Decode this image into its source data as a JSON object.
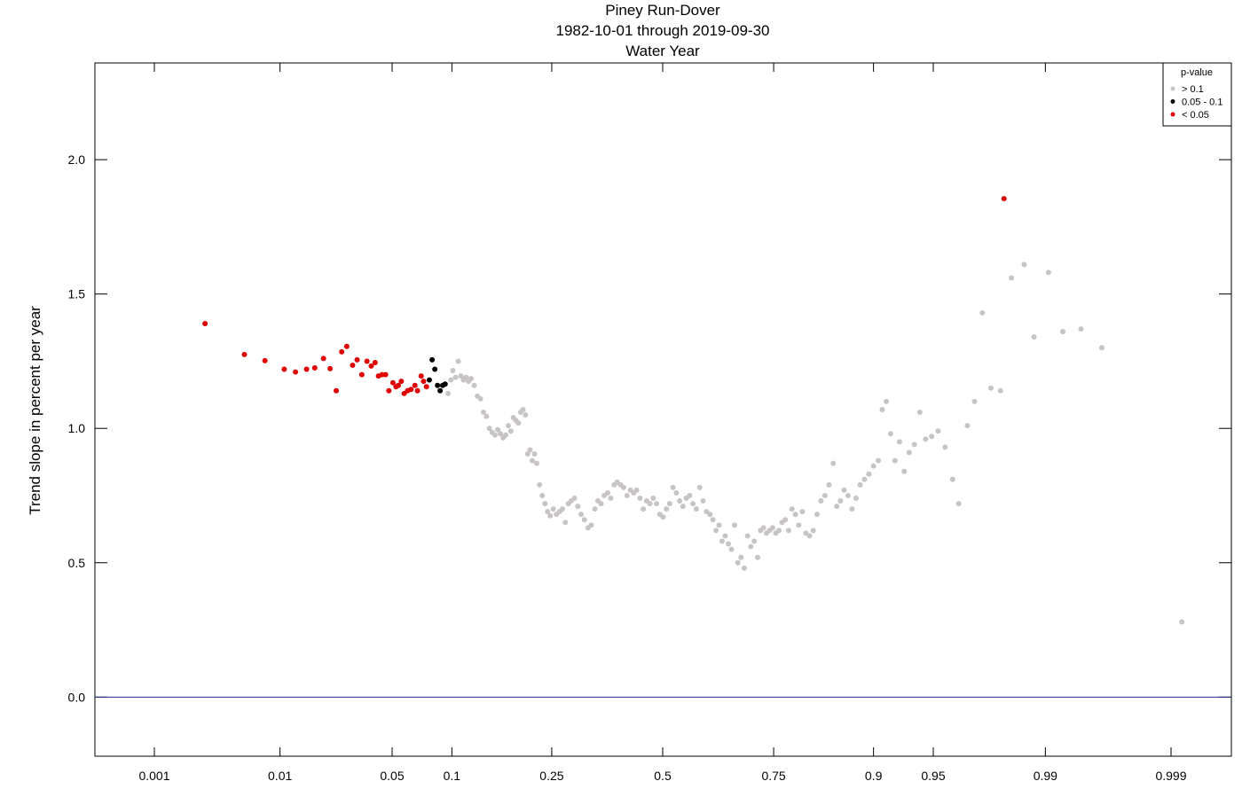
{
  "chart_data": {
    "type": "scatter",
    "title": [
      "Piney Run-Dover",
      "1982-10-01 through 2019-09-30",
      "Water Year"
    ],
    "ylabel": "Trend slope in percent per year",
    "xlabel": "",
    "x_scale": "normal-probability",
    "x_ticks": [
      0.001,
      0.01,
      0.05,
      0.1,
      0.25,
      0.5,
      0.75,
      0.9,
      0.95,
      0.99,
      0.999
    ],
    "x_tick_labels": [
      "0.001",
      "0.01",
      "0.05",
      "0.1",
      "0.25",
      "0.5",
      "0.75",
      "0.9",
      "0.95",
      "0.99",
      "0.999"
    ],
    "ylim": [
      -0.22,
      2.36
    ],
    "y_ticks": [
      0.0,
      0.5,
      1.0,
      1.5,
      2.0
    ],
    "y_tick_labels": [
      "0.0",
      "0.5",
      "1.0",
      "1.5",
      "2.0"
    ],
    "reference_line": {
      "y": 0.0,
      "color": "#1c2e8f"
    },
    "grid": false,
    "legend": {
      "title": "p-value",
      "position": "top-right",
      "entries": [
        {
          "label": "> 0.1",
          "color": "#c8c4c4"
        },
        {
          "label": "0.05 - 0.1",
          "color": "#000000"
        },
        {
          "label": "< 0.05",
          "color": "#e00000"
        }
      ]
    },
    "series": [
      {
        "name": "< 0.05",
        "color": "#e00000",
        "points": [
          [
            0.0027,
            1.39
          ],
          [
            0.0055,
            1.275
          ],
          [
            0.0078,
            1.252
          ],
          [
            0.0107,
            1.22
          ],
          [
            0.0128,
            1.21
          ],
          [
            0.0152,
            1.22
          ],
          [
            0.0172,
            1.225
          ],
          [
            0.0196,
            1.26
          ],
          [
            0.0216,
            1.222
          ],
          [
            0.0236,
            1.14
          ],
          [
            0.0255,
            1.285
          ],
          [
            0.0274,
            1.305
          ],
          [
            0.0297,
            1.235
          ],
          [
            0.0316,
            1.255
          ],
          [
            0.0337,
            1.2
          ],
          [
            0.0361,
            1.25
          ],
          [
            0.0382,
            1.232
          ],
          [
            0.0402,
            1.245
          ],
          [
            0.042,
            1.195
          ],
          [
            0.044,
            1.2
          ],
          [
            0.046,
            1.2
          ],
          [
            0.048,
            1.14
          ],
          [
            0.0505,
            1.17
          ],
          [
            0.0525,
            1.155
          ],
          [
            0.054,
            1.16
          ],
          [
            0.056,
            1.175
          ],
          [
            0.058,
            1.13
          ],
          [
            0.0605,
            1.14
          ],
          [
            0.063,
            1.145
          ],
          [
            0.066,
            1.16
          ],
          [
            0.068,
            1.14
          ],
          [
            0.071,
            1.195
          ],
          [
            0.073,
            1.175
          ],
          [
            0.0755,
            1.155
          ],
          [
            0.981,
            1.855
          ]
        ]
      },
      {
        "name": "0.05 - 0.1",
        "color": "#000000",
        "points": [
          [
            0.078,
            1.18
          ],
          [
            0.0805,
            1.255
          ],
          [
            0.083,
            1.22
          ],
          [
            0.0855,
            1.16
          ],
          [
            0.088,
            1.14
          ],
          [
            0.0905,
            1.16
          ],
          [
            0.093,
            1.165
          ]
        ]
      },
      {
        "name": "> 0.1",
        "color": "#c8c4c4",
        "points": [
          [
            0.096,
            1.13
          ],
          [
            0.099,
            1.18
          ],
          [
            0.101,
            1.215
          ],
          [
            0.104,
            1.19
          ],
          [
            0.107,
            1.25
          ],
          [
            0.11,
            1.195
          ],
          [
            0.113,
            1.18
          ],
          [
            0.116,
            1.19
          ],
          [
            0.119,
            1.175
          ],
          [
            0.122,
            1.185
          ],
          [
            0.126,
            1.16
          ],
          [
            0.13,
            1.12
          ],
          [
            0.134,
            1.11
          ],
          [
            0.138,
            1.06
          ],
          [
            0.142,
            1.045
          ],
          [
            0.146,
            1.0
          ],
          [
            0.15,
            0.985
          ],
          [
            0.154,
            0.975
          ],
          [
            0.158,
            0.995
          ],
          [
            0.162,
            0.98
          ],
          [
            0.166,
            0.965
          ],
          [
            0.17,
            0.975
          ],
          [
            0.174,
            1.01
          ],
          [
            0.178,
            0.99
          ],
          [
            0.182,
            1.04
          ],
          [
            0.186,
            1.03
          ],
          [
            0.19,
            1.02
          ],
          [
            0.194,
            1.06
          ],
          [
            0.198,
            1.07
          ],
          [
            0.202,
            1.05
          ],
          [
            0.206,
            0.905
          ],
          [
            0.21,
            0.92
          ],
          [
            0.214,
            0.88
          ],
          [
            0.218,
            0.905
          ],
          [
            0.222,
            0.87
          ],
          [
            0.227,
            0.79
          ],
          [
            0.232,
            0.75
          ],
          [
            0.237,
            0.72
          ],
          [
            0.242,
            0.69
          ],
          [
            0.247,
            0.675
          ],
          [
            0.253,
            0.7
          ],
          [
            0.259,
            0.68
          ],
          [
            0.265,
            0.69
          ],
          [
            0.271,
            0.7
          ],
          [
            0.277,
            0.65
          ],
          [
            0.283,
            0.72
          ],
          [
            0.289,
            0.73
          ],
          [
            0.296,
            0.74
          ],
          [
            0.303,
            0.71
          ],
          [
            0.31,
            0.68
          ],
          [
            0.317,
            0.66
          ],
          [
            0.325,
            0.63
          ],
          [
            0.332,
            0.64
          ],
          [
            0.34,
            0.7
          ],
          [
            0.347,
            0.73
          ],
          [
            0.354,
            0.72
          ],
          [
            0.361,
            0.75
          ],
          [
            0.369,
            0.76
          ],
          [
            0.376,
            0.74
          ],
          [
            0.384,
            0.79
          ],
          [
            0.391,
            0.8
          ],
          [
            0.399,
            0.79
          ],
          [
            0.406,
            0.78
          ],
          [
            0.414,
            0.75
          ],
          [
            0.422,
            0.77
          ],
          [
            0.43,
            0.76
          ],
          [
            0.437,
            0.77
          ],
          [
            0.445,
            0.74
          ],
          [
            0.453,
            0.7
          ],
          [
            0.461,
            0.73
          ],
          [
            0.469,
            0.72
          ],
          [
            0.477,
            0.74
          ],
          [
            0.485,
            0.72
          ],
          [
            0.493,
            0.68
          ],
          [
            0.501,
            0.67
          ],
          [
            0.509,
            0.7
          ],
          [
            0.517,
            0.72
          ],
          [
            0.525,
            0.78
          ],
          [
            0.533,
            0.76
          ],
          [
            0.541,
            0.73
          ],
          [
            0.549,
            0.71
          ],
          [
            0.557,
            0.74
          ],
          [
            0.565,
            0.75
          ],
          [
            0.573,
            0.72
          ],
          [
            0.581,
            0.7
          ],
          [
            0.589,
            0.78
          ],
          [
            0.597,
            0.73
          ],
          [
            0.605,
            0.69
          ],
          [
            0.613,
            0.68
          ],
          [
            0.62,
            0.66
          ],
          [
            0.627,
            0.62
          ],
          [
            0.634,
            0.64
          ],
          [
            0.641,
            0.58
          ],
          [
            0.648,
            0.6
          ],
          [
            0.655,
            0.57
          ],
          [
            0.662,
            0.55
          ],
          [
            0.669,
            0.64
          ],
          [
            0.676,
            0.5
          ],
          [
            0.683,
            0.52
          ],
          [
            0.69,
            0.48
          ],
          [
            0.697,
            0.6
          ],
          [
            0.704,
            0.56
          ],
          [
            0.711,
            0.58
          ],
          [
            0.718,
            0.52
          ],
          [
            0.724,
            0.62
          ],
          [
            0.73,
            0.63
          ],
          [
            0.736,
            0.61
          ],
          [
            0.742,
            0.62
          ],
          [
            0.748,
            0.63
          ],
          [
            0.754,
            0.61
          ],
          [
            0.76,
            0.62
          ],
          [
            0.766,
            0.65
          ],
          [
            0.772,
            0.66
          ],
          [
            0.778,
            0.62
          ],
          [
            0.784,
            0.7
          ],
          [
            0.79,
            0.68
          ],
          [
            0.796,
            0.64
          ],
          [
            0.802,
            0.69
          ],
          [
            0.808,
            0.61
          ],
          [
            0.814,
            0.6
          ],
          [
            0.82,
            0.62
          ],
          [
            0.826,
            0.68
          ],
          [
            0.832,
            0.73
          ],
          [
            0.838,
            0.75
          ],
          [
            0.844,
            0.79
          ],
          [
            0.85,
            0.87
          ],
          [
            0.855,
            0.71
          ],
          [
            0.86,
            0.73
          ],
          [
            0.865,
            0.77
          ],
          [
            0.87,
            0.75
          ],
          [
            0.875,
            0.7
          ],
          [
            0.88,
            0.74
          ],
          [
            0.885,
            0.79
          ],
          [
            0.89,
            0.81
          ],
          [
            0.895,
            0.83
          ],
          [
            0.9,
            0.86
          ],
          [
            0.905,
            0.88
          ],
          [
            0.909,
            1.07
          ],
          [
            0.913,
            1.1
          ],
          [
            0.917,
            0.98
          ],
          [
            0.921,
            0.88
          ],
          [
            0.925,
            0.95
          ],
          [
            0.929,
            0.84
          ],
          [
            0.933,
            0.91
          ],
          [
            0.937,
            0.94
          ],
          [
            0.941,
            1.06
          ],
          [
            0.945,
            0.96
          ],
          [
            0.949,
            0.97
          ],
          [
            0.953,
            0.99
          ],
          [
            0.957,
            0.93
          ],
          [
            0.961,
            0.81
          ],
          [
            0.964,
            0.72
          ],
          [
            0.968,
            1.01
          ],
          [
            0.971,
            1.1
          ],
          [
            0.974,
            1.43
          ],
          [
            0.977,
            1.15
          ],
          [
            0.98,
            1.14
          ],
          [
            0.983,
            1.56
          ],
          [
            0.986,
            1.61
          ],
          [
            0.988,
            1.34
          ],
          [
            0.9905,
            1.58
          ],
          [
            0.9925,
            1.36
          ],
          [
            0.9945,
            1.37
          ],
          [
            0.9962,
            1.3
          ],
          [
            0.9992,
            0.28
          ]
        ]
      }
    ]
  }
}
